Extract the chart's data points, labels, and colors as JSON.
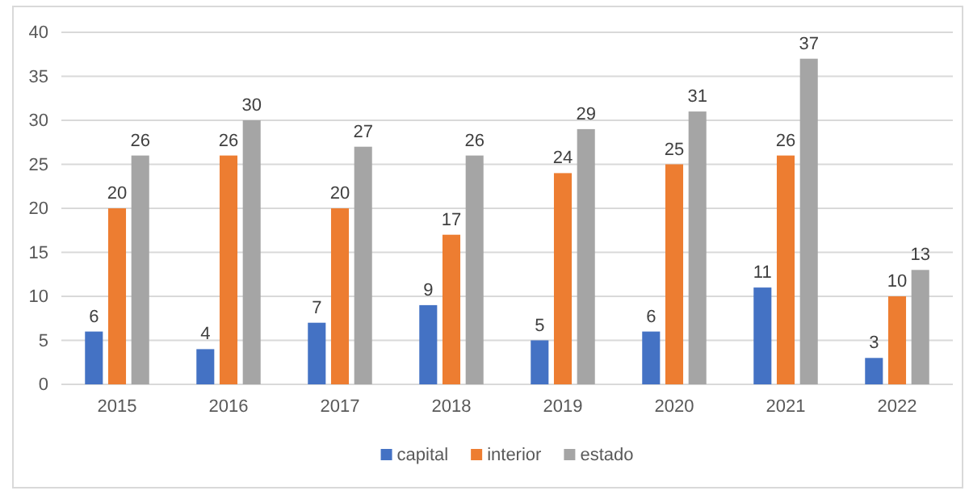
{
  "chart_data": {
    "type": "bar",
    "categories": [
      "2015",
      "2016",
      "2017",
      "2018",
      "2019",
      "2020",
      "2021",
      "2022"
    ],
    "series": [
      {
        "name": "capital",
        "color": "#4472c4",
        "values": [
          6,
          4,
          7,
          9,
          5,
          6,
          11,
          3
        ]
      },
      {
        "name": "interior",
        "color": "#ed7d31",
        "values": [
          20,
          26,
          20,
          17,
          24,
          25,
          26,
          10
        ]
      },
      {
        "name": "estado",
        "color": "#a5a5a5",
        "values": [
          26,
          30,
          27,
          26,
          29,
          31,
          37,
          13
        ]
      }
    ],
    "ylim": [
      0,
      40
    ],
    "yticks": [
      0,
      5,
      10,
      15,
      20,
      25,
      30,
      35,
      40
    ],
    "grid": "y",
    "legend": "bottom",
    "data_labels": true
  }
}
